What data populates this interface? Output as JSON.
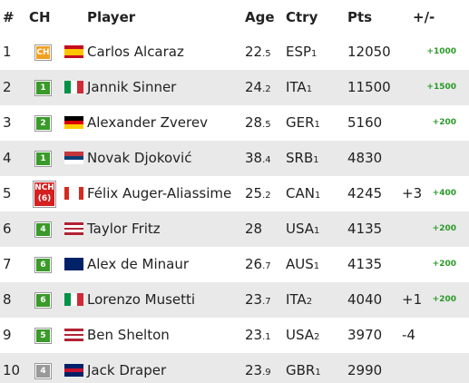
{
  "table": {
    "header": [
      "#",
      "CH",
      "Player",
      "Age",
      "Ctry",
      "Pts",
      "+/-"
    ],
    "rows": [
      {
        "rank": "1",
        "ch": "CH",
        "ch_color": "#f0a020",
        "flag": {
          "dir": "h",
          "colors": [
            "#c60b1e",
            "#ffc400",
            "#ffc400",
            "#c60b1e"
          ]
        },
        "player": "Carlos Alcaraz",
        "age": "22",
        "age_dec": ".5",
        "ctry": "ESP",
        "ctry_n": "1",
        "pts": "12050",
        "pts_change": "+1000"
      },
      {
        "rank": "2",
        "ch": "1",
        "ch_color": "#3a9a2a",
        "flag": {
          "dir": "v",
          "colors": [
            "#009246",
            "#ffffff",
            "#ce2b37"
          ]
        },
        "player": "Jannik Sinner",
        "age": "24",
        "age_dec": ".2",
        "ctry": "ITA",
        "ctry_n": "1",
        "pts": "11500",
        "pts_change": "+1500"
      },
      {
        "rank": "3",
        "ch": "2",
        "ch_color": "#3a9a2a",
        "flag": {
          "dir": "h",
          "colors": [
            "#000000",
            "#dd0000",
            "#ffce00"
          ]
        },
        "player": "Alexander Zverev",
        "age": "28",
        "age_dec": ".5",
        "ctry": "GER",
        "ctry_n": "1",
        "pts": "5160",
        "pts_change": "+200"
      },
      {
        "rank": "4",
        "ch": "1",
        "ch_color": "#3a9a2a",
        "flag": {
          "dir": "h",
          "colors": [
            "#c6363c",
            "#0c4076",
            "#ffffff"
          ]
        },
        "player": "Novak Djoković",
        "age": "38",
        "age_dec": ".4",
        "ctry": "SRB",
        "ctry_n": "1",
        "pts": "4830"
      },
      {
        "rank": "5",
        "ch": "NCH",
        "ch_sub": "(6)",
        "ch_color": "#d42020",
        "flag": {
          "dir": "v",
          "colors": [
            "#d52b1e",
            "#ffffff",
            "#ffffff",
            "#d52b1e"
          ]
        },
        "player": "Félix Auger-Aliassime",
        "age": "25",
        "age_dec": ".2",
        "ctry": "CAN",
        "ctry_n": "1",
        "pts": "4245",
        "change": "+3",
        "pts_change": "+400"
      },
      {
        "rank": "6",
        "ch": "4",
        "ch_color": "#3a9a2a",
        "flag": {
          "dir": "h",
          "colors": [
            "#b22234",
            "#ffffff",
            "#b22234",
            "#ffffff",
            "#b22234"
          ]
        },
        "player": "Taylor Fritz",
        "age": "28",
        "ctry": "USA",
        "ctry_n": "1",
        "pts": "4135",
        "pts_change": "+200"
      },
      {
        "rank": "7",
        "ch": "6",
        "ch_color": "#3a9a2a",
        "flag": {
          "dir": "h",
          "colors": [
            "#012169",
            "#012169"
          ]
        },
        "player": "Alex de Minaur",
        "age": "26",
        "age_dec": ".7",
        "ctry": "AUS",
        "ctry_n": "1",
        "pts": "4135",
        "pts_change": "+200"
      },
      {
        "rank": "8",
        "ch": "6",
        "ch_color": "#3a9a2a",
        "flag": {
          "dir": "v",
          "colors": [
            "#009246",
            "#ffffff",
            "#ce2b37"
          ]
        },
        "player": "Lorenzo Musetti",
        "age": "23",
        "age_dec": ".7",
        "ctry": "ITA",
        "ctry_n": "2",
        "pts": "4040",
        "change": "+1",
        "pts_change": "+200"
      },
      {
        "rank": "9",
        "ch": "5",
        "ch_color": "#3a9a2a",
        "flag": {
          "dir": "h",
          "colors": [
            "#b22234",
            "#ffffff",
            "#b22234",
            "#ffffff",
            "#b22234"
          ]
        },
        "player": "Ben Shelton",
        "age": "23",
        "age_dec": ".1",
        "ctry": "USA",
        "ctry_n": "2",
        "pts": "3970",
        "change": "-4"
      },
      {
        "rank": "10",
        "ch": "4",
        "ch_color": "#999999",
        "flag": {
          "dir": "h",
          "colors": [
            "#012169",
            "#c8102e",
            "#012169"
          ]
        },
        "player": "Jack Draper",
        "age": "23",
        "age_dec": ".9",
        "ctry": "GBR",
        "ctry_n": "1",
        "pts": "2990"
      }
    ]
  }
}
